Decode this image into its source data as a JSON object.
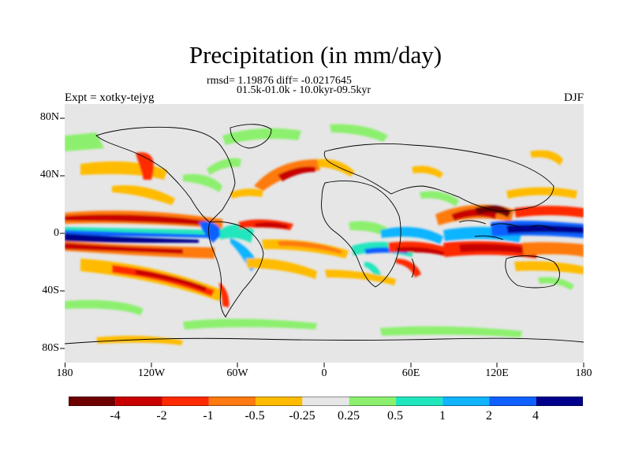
{
  "title": "Precipitation (in mm/day)",
  "stats_line1": "rmsd= 1.19876 diff= -0.0217645",
  "stats_line2": "01.5k-01.0k - 10.0kyr-09.5kyr",
  "experiment": "Expt = xotky-tejyg",
  "season": "DJF",
  "map": {
    "background_color": "#e6e6e6",
    "lat_ticks": [
      "80N",
      "40N",
      "0",
      "40S",
      "80S"
    ],
    "lon_ticks": [
      "180",
      "120W",
      "60W",
      "0",
      "60E",
      "120E",
      "180"
    ]
  },
  "colorbar": {
    "colors": [
      "#6e0000",
      "#c80000",
      "#ff2a00",
      "#ff7a10",
      "#ffbb00",
      "#e6e6e6",
      "#8cf06e",
      "#20e6be",
      "#10b4ff",
      "#1060ff",
      "#00008c"
    ],
    "labels": [
      "-4",
      "-2",
      "-1",
      "-0.5",
      "-0.25",
      "0.25",
      "0.5",
      "1",
      "2",
      "4"
    ]
  }
}
